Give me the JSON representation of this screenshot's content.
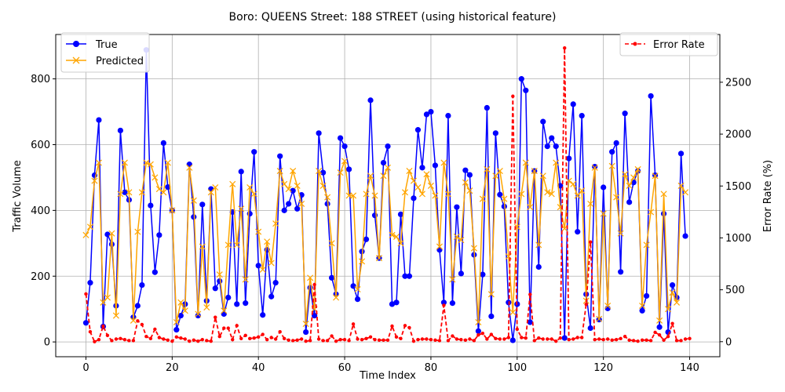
{
  "chart_data": {
    "type": "line",
    "title": "Boro: QUEENS Street: 188 STREET (using historical feature)",
    "xlabel": "Time Index",
    "ylabel": "Traffic Volume",
    "ylabel_right": "Error Rate (%)",
    "xlim": [
      -7,
      147
    ],
    "ylim": [
      -45,
      935
    ],
    "ylim_right": [
      -145,
      2960
    ],
    "xticks": [
      0,
      20,
      40,
      60,
      80,
      100,
      120,
      140
    ],
    "yticks": [
      0,
      200,
      400,
      600,
      800
    ],
    "yticks_right": [
      0,
      500,
      1000,
      1500,
      2000,
      2500
    ],
    "grid": true,
    "legend_left": "top-left",
    "legend_right": "top-right",
    "colors": {
      "true": "#0000ff",
      "predicted": "#ffa500",
      "error": "#ff0000"
    },
    "series": [
      {
        "name": "True",
        "axis": "left",
        "style": "solid-dot",
        "values": [
          58,
          180,
          507,
          675,
          47,
          327,
          297,
          110,
          643,
          455,
          432,
          75,
          110,
          173,
          888,
          415,
          212,
          325,
          605,
          471,
          400,
          37,
          80,
          115,
          540,
          380,
          80,
          418,
          125,
          465,
          163,
          185,
          85,
          135,
          395,
          115,
          518,
          118,
          390,
          578,
          232,
          82,
          280,
          138,
          180,
          565,
          400,
          420,
          460,
          405,
          447,
          30,
          165,
          80,
          635,
          515,
          420,
          195,
          145,
          620,
          595,
          525,
          170,
          130,
          275,
          312,
          735,
          385,
          255,
          545,
          595,
          115,
          120,
          388,
          200,
          200,
          437,
          645,
          530,
          692,
          700,
          537,
          280,
          120,
          688,
          118,
          410,
          208,
          522,
          508,
          265,
          33,
          205,
          712,
          78,
          635,
          448,
          412,
          120,
          5,
          115,
          800,
          765,
          60,
          520,
          228,
          670,
          595,
          620,
          595,
          475,
          12,
          558,
          723,
          335,
          688,
          145,
          42,
          533,
          68,
          470,
          102,
          578,
          605,
          213,
          695,
          425,
          485,
          520,
          95,
          140,
          748,
          507,
          45,
          390,
          30,
          173,
          135,
          573,
          322
        ]
      },
      {
        "name": "Predicted",
        "axis": "left",
        "style": "solid-x",
        "values": [
          325,
          350,
          490,
          545,
          120,
          135,
          330,
          80,
          450,
          545,
          455,
          65,
          335,
          455,
          545,
          540,
          500,
          465,
          455,
          545,
          400,
          60,
          120,
          95,
          530,
          430,
          85,
          290,
          105,
          455,
          470,
          205,
          95,
          295,
          480,
          295,
          405,
          190,
          470,
          450,
          335,
          220,
          305,
          240,
          360,
          520,
          480,
          465,
          520,
          475,
          420,
          55,
          195,
          100,
          520,
          475,
          440,
          300,
          135,
          515,
          550,
          445,
          445,
          160,
          245,
          450,
          505,
          445,
          255,
          505,
          530,
          325,
          320,
          300,
          455,
          520,
          490,
          470,
          450,
          510,
          475,
          445,
          290,
          545,
          450,
          190,
          320,
          310,
          485,
          460,
          285,
          60,
          435,
          525,
          145,
          505,
          520,
          435,
          260,
          90,
          350,
          450,
          545,
          410,
          520,
          295,
          505,
          455,
          450,
          545,
          410,
          345,
          490,
          480,
          445,
          460,
          125,
          420,
          530,
          70,
          390,
          110,
          535,
          440,
          330,
          510,
          475,
          500,
          525,
          110,
          295,
          395,
          505,
          65,
          450,
          100,
          150,
          120,
          475,
          455
        ]
      },
      {
        "name": "Error Rate",
        "axis": "right",
        "style": "dashed-dot",
        "values": [
          460,
          95,
          0,
          20,
          150,
          60,
          10,
          25,
          30,
          20,
          10,
          10,
          200,
          165,
          50,
          30,
          120,
          40,
          25,
          15,
          5,
          45,
          35,
          25,
          5,
          15,
          5,
          20,
          10,
          5,
          235,
          50,
          130,
          130,
          20,
          155,
          30,
          60,
          30,
          35,
          45,
          70,
          20,
          40,
          25,
          95,
          30,
          15,
          10,
          15,
          25,
          5,
          10,
          550,
          25,
          10,
          10,
          55,
          5,
          20,
          20,
          10,
          170,
          25,
          20,
          30,
          45,
          20,
          15,
          15,
          15,
          150,
          45,
          30,
          155,
          135,
          5,
          20,
          25,
          25,
          20,
          15,
          10,
          350,
          10,
          55,
          25,
          20,
          15,
          25,
          10,
          65,
          80,
          25,
          70,
          30,
          25,
          25,
          40,
          2365,
          120,
          40,
          35,
          455,
          10,
          35,
          25,
          25,
          25,
          5,
          35,
          2830,
          20,
          25,
          40,
          40,
          360,
          960,
          20,
          25,
          20,
          25,
          15,
          20,
          30,
          50,
          15,
          10,
          5,
          15,
          15,
          10,
          90,
          65,
          15,
          50,
          175,
          10,
          10,
          25,
          30
        ]
      }
    ]
  }
}
